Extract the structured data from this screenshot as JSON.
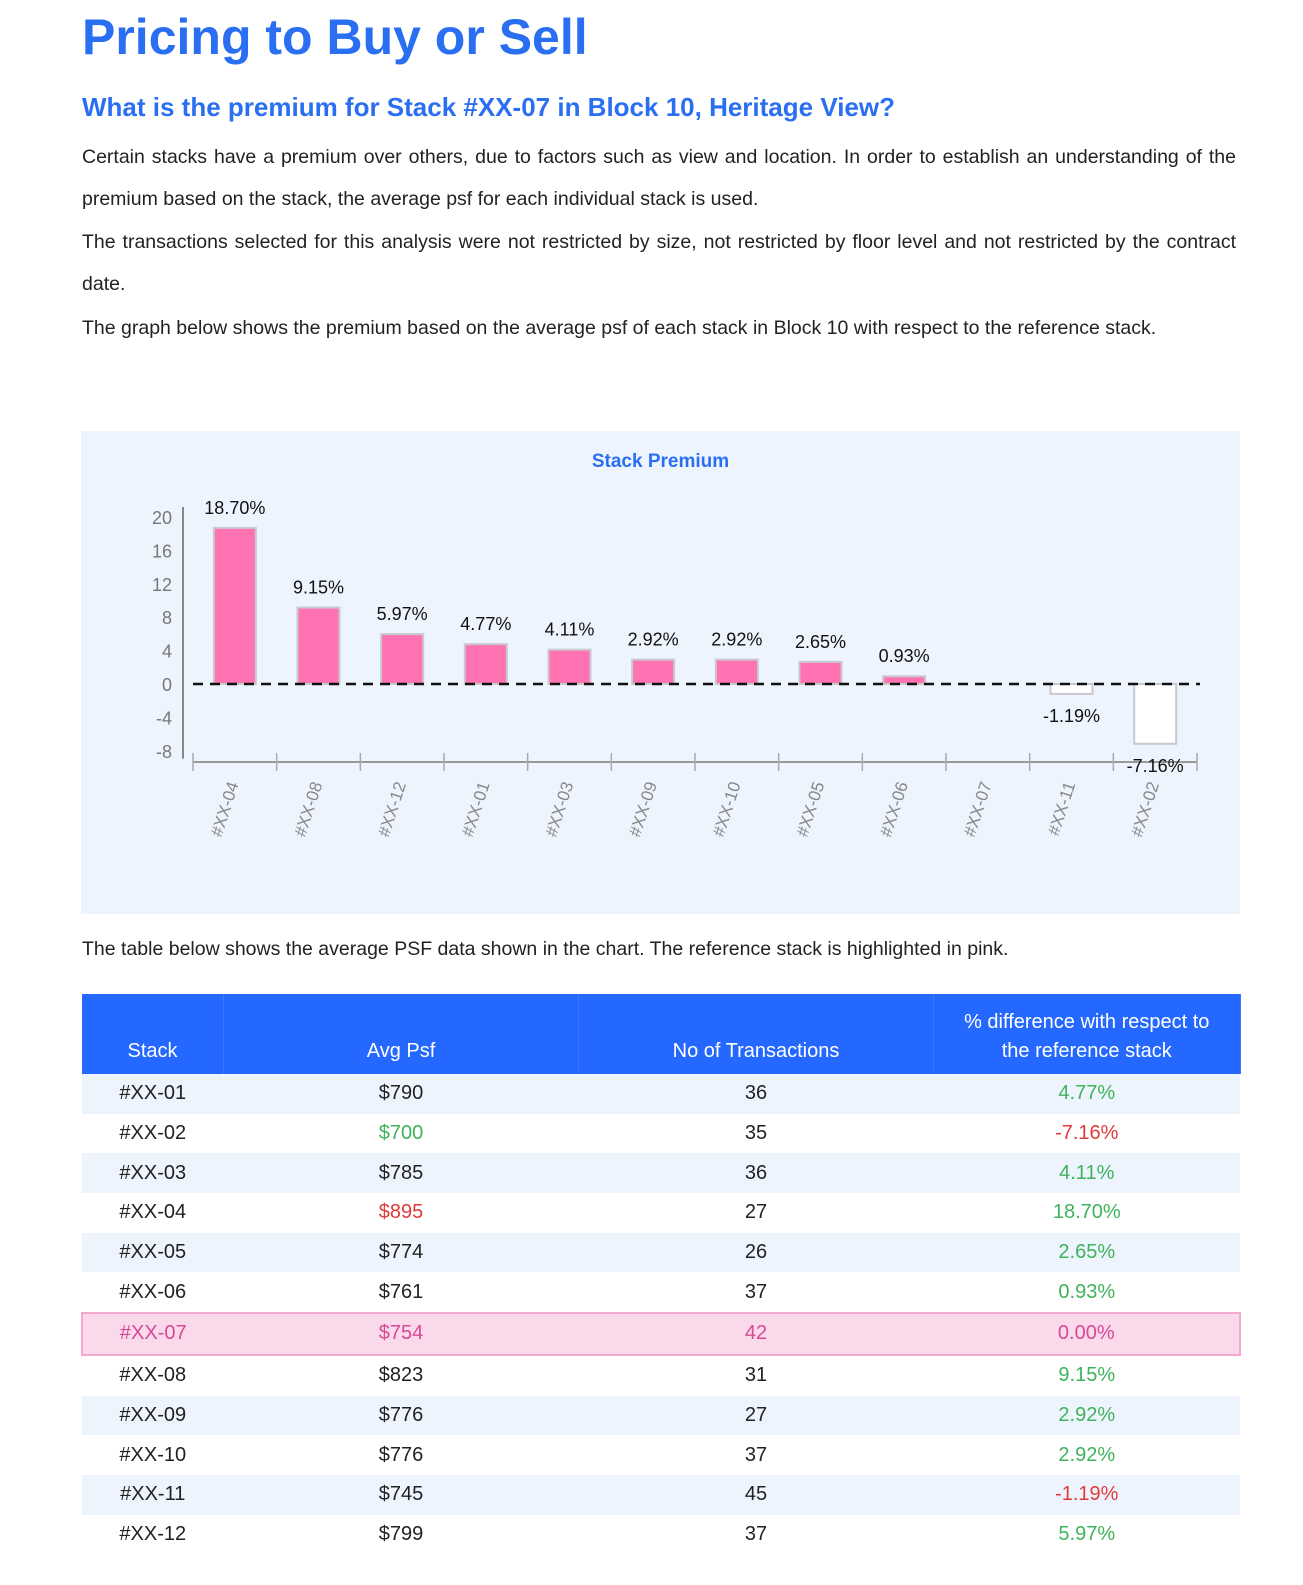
{
  "title": "Pricing to Buy or Sell",
  "subtitle": "What is the premium for Stack #XX-07 in Block 10, Heritage View?",
  "paragraphs": [
    "Certain stacks have a premium over others, due to factors such as view and location. In order to establish an understanding of the premium based on the stack, the average psf for each individual stack is used.",
    "The transactions selected for this analysis were not restricted by size, not restricted by floor level and not restricted by the contract date.",
    "The graph below shows the premium based on the average psf of each stack in Block 10 with respect to the reference stack."
  ],
  "chart_data": {
    "type": "bar",
    "title": "Stack Premium",
    "categories": [
      "#XX-04",
      "#XX-08",
      "#XX-12",
      "#XX-01",
      "#XX-03",
      "#XX-09",
      "#XX-10",
      "#XX-05",
      "#XX-06",
      "#XX-07",
      "#XX-11",
      "#XX-02"
    ],
    "values": [
      18.7,
      9.15,
      5.97,
      4.77,
      4.11,
      2.92,
      2.92,
      2.65,
      0.93,
      0,
      -1.19,
      -7.16
    ],
    "data_labels": [
      "18.70%",
      "9.15%",
      "5.97%",
      "4.77%",
      "4.11%",
      "2.92%",
      "2.92%",
      "2.65%",
      "0.93%",
      "",
      "-1.19%",
      "-7.16%"
    ],
    "yticks": [
      "20",
      "16",
      "12",
      "8",
      "4",
      "0",
      "-4",
      "-8"
    ],
    "ylim": [
      -8,
      20
    ],
    "reference_line": 0,
    "colors": {
      "positive": "#ff73b3",
      "negative": "#ffffff",
      "outline": "#c8c8d0"
    }
  },
  "caption": "The table below shows the average PSF data shown in the chart. The reference stack is highlighted in pink.",
  "table": {
    "headers": [
      "Stack",
      "Avg Psf",
      "No of Transactions",
      "% difference with respect to the reference stack"
    ],
    "rows": [
      {
        "stack": "#XX-01",
        "psf": "$790",
        "tx": "36",
        "diff": "4.77%",
        "psf_class": "",
        "diff_class": "pos"
      },
      {
        "stack": "#XX-02",
        "psf": "$700",
        "tx": "35",
        "diff": "-7.16%",
        "psf_class": "pos",
        "diff_class": "neg"
      },
      {
        "stack": "#XX-03",
        "psf": "$785",
        "tx": "36",
        "diff": "4.11%",
        "psf_class": "",
        "diff_class": "pos"
      },
      {
        "stack": "#XX-04",
        "psf": "$895",
        "tx": "27",
        "diff": "18.70%",
        "psf_class": "neg",
        "diff_class": "pos"
      },
      {
        "stack": "#XX-05",
        "psf": "$774",
        "tx": "26",
        "diff": "2.65%",
        "psf_class": "",
        "diff_class": "pos"
      },
      {
        "stack": "#XX-06",
        "psf": "$761",
        "tx": "37",
        "diff": "0.93%",
        "psf_class": "",
        "diff_class": "pos"
      },
      {
        "stack": "#XX-07",
        "psf": "$754",
        "tx": "42",
        "diff": "0.00%",
        "psf_class": "",
        "diff_class": "",
        "reference": true
      },
      {
        "stack": "#XX-08",
        "psf": "$823",
        "tx": "31",
        "diff": "9.15%",
        "psf_class": "",
        "diff_class": "pos"
      },
      {
        "stack": "#XX-09",
        "psf": "$776",
        "tx": "27",
        "diff": "2.92%",
        "psf_class": "",
        "diff_class": "pos"
      },
      {
        "stack": "#XX-10",
        "psf": "$776",
        "tx": "37",
        "diff": "2.92%",
        "psf_class": "",
        "diff_class": "pos"
      },
      {
        "stack": "#XX-11",
        "psf": "$745",
        "tx": "45",
        "diff": "-1.19%",
        "psf_class": "",
        "diff_class": "neg"
      },
      {
        "stack": "#XX-12",
        "psf": "$799",
        "tx": "37",
        "diff": "5.97%",
        "psf_class": "",
        "diff_class": "pos"
      }
    ]
  }
}
